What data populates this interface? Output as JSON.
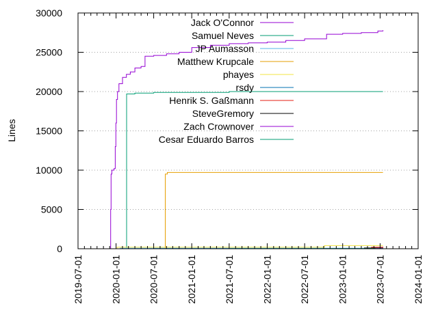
{
  "chart_data": {
    "type": "line",
    "ylabel": "Lines",
    "ylim": [
      0,
      30000
    ],
    "yticks": [
      0,
      5000,
      10000,
      15000,
      20000,
      25000,
      30000
    ],
    "xlim": [
      "2019-07-01",
      "2024-01-01"
    ],
    "xticks": [
      "2019-07-01",
      "2020-01-01",
      "2020-07-01",
      "2021-01-01",
      "2021-07-01",
      "2022-01-01",
      "2022-07-01",
      "2023-01-01",
      "2023-07-01",
      "2024-01-01"
    ],
    "grid": "horizontal dotted",
    "legend_position": "top",
    "series": [
      {
        "name": "Jack O'Connor",
        "color": "#9400d3",
        "points": [
          [
            "2019-12-05",
            0
          ],
          [
            "2019-12-06",
            5000
          ],
          [
            "2019-12-08",
            9500
          ],
          [
            "2019-12-12",
            10000
          ],
          [
            "2019-12-22",
            10200
          ],
          [
            "2019-12-28",
            13000
          ],
          [
            "2019-12-31",
            16000
          ],
          [
            "2020-01-03",
            19000
          ],
          [
            "2020-01-08",
            20000
          ],
          [
            "2020-01-15",
            21000
          ],
          [
            "2020-02-01",
            21800
          ],
          [
            "2020-02-20",
            22200
          ],
          [
            "2020-03-10",
            22500
          ],
          [
            "2020-04-01",
            23000
          ],
          [
            "2020-05-01",
            23200
          ],
          [
            "2020-05-20",
            24500
          ],
          [
            "2020-07-01",
            24600
          ],
          [
            "2020-09-01",
            24800
          ],
          [
            "2020-11-01",
            25000
          ],
          [
            "2021-01-01",
            25600
          ],
          [
            "2021-04-01",
            25900
          ],
          [
            "2021-07-01",
            26100
          ],
          [
            "2021-10-01",
            26200
          ],
          [
            "2022-01-01",
            26300
          ],
          [
            "2022-04-01",
            26500
          ],
          [
            "2022-07-01",
            26700
          ],
          [
            "2022-09-01",
            26700
          ],
          [
            "2022-10-15",
            27300
          ],
          [
            "2023-01-01",
            27400
          ],
          [
            "2023-04-01",
            27500
          ],
          [
            "2023-06-20",
            27700
          ],
          [
            "2023-07-15",
            27800
          ]
        ]
      },
      {
        "name": "Samuel Neves",
        "color": "#009e73",
        "points": [
          [
            "2020-02-20",
            0
          ],
          [
            "2020-02-21",
            19700
          ],
          [
            "2020-04-01",
            19800
          ],
          [
            "2020-07-01",
            19900
          ],
          [
            "2021-07-01",
            20000
          ],
          [
            "2023-07-15",
            20000
          ]
        ]
      },
      {
        "name": "JP Aumasson",
        "color": "#56b4e9",
        "points": [
          [
            "2020-01-20",
            0
          ],
          [
            "2020-01-21",
            60
          ],
          [
            "2023-07-15",
            100
          ]
        ]
      },
      {
        "name": "Matthew Krupcale",
        "color": "#e69f00",
        "points": [
          [
            "2020-08-25",
            0
          ],
          [
            "2020-08-26",
            9500
          ],
          [
            "2020-09-05",
            9700
          ],
          [
            "2023-07-15",
            9700
          ]
        ]
      },
      {
        "name": "phayes",
        "color": "#f0e442",
        "points": [
          [
            "2020-01-05",
            0
          ],
          [
            "2020-01-06",
            200
          ],
          [
            "2022-10-01",
            200
          ],
          [
            "2022-10-05",
            400
          ],
          [
            "2023-07-15",
            400
          ]
        ]
      },
      {
        "name": "rsdy",
        "color": "#0072b2",
        "points": [
          [
            "2020-07-01",
            0
          ],
          [
            "2020-07-02",
            30
          ],
          [
            "2023-07-15",
            40
          ]
        ]
      },
      {
        "name": "Henrik S. Gaßmann",
        "color": "#e51e10",
        "points": [
          [
            "2023-05-20",
            0
          ],
          [
            "2023-05-21",
            200
          ],
          [
            "2023-07-15",
            250
          ]
        ]
      },
      {
        "name": "SteveGremory",
        "color": "#000000",
        "points": [
          [
            "2023-04-15",
            0
          ],
          [
            "2023-04-16",
            100
          ],
          [
            "2023-07-15",
            100
          ]
        ]
      },
      {
        "name": "Zach Crownover",
        "color": "#9400d3",
        "points": [
          [
            "2023-06-10",
            0
          ],
          [
            "2023-06-11",
            50
          ],
          [
            "2023-07-15",
            50
          ]
        ]
      },
      {
        "name": "Cesar Eduardo Barros",
        "color": "#009e73",
        "points": [
          [
            "2021-07-01",
            0
          ],
          [
            "2021-07-02",
            20
          ],
          [
            "2023-07-15",
            20
          ]
        ]
      }
    ]
  }
}
